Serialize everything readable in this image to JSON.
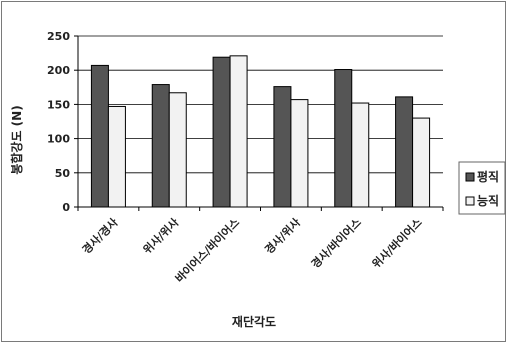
{
  "chart_data": {
    "type": "bar",
    "categories": [
      "경사/경사",
      "위사/위사",
      "바이어스/바이어스",
      "경사/위사",
      "경사/바이어스",
      "위사/바이어스"
    ],
    "series": [
      {
        "name": "평직",
        "values": [
          207,
          179,
          219,
          176,
          201,
          161
        ],
        "color": "#555555"
      },
      {
        "name": "능직",
        "values": [
          147,
          167,
          221,
          157,
          152,
          130
        ],
        "color": "#f2f2f2"
      }
    ],
    "xlabel": "재단각도",
    "ylabel": "봉합강도 (N)",
    "ylim": [
      0,
      250
    ],
    "yticks": [
      0,
      50,
      100,
      150,
      200,
      250
    ],
    "grid": true,
    "legend": "right"
  }
}
